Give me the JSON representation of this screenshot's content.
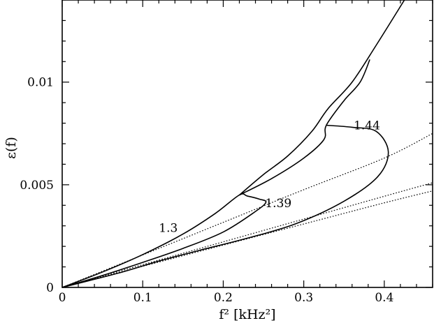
{
  "chart_data": {
    "type": "line",
    "xlabel": "f² [kHz²]",
    "ylabel": "ε(f)",
    "xlim": [
      0,
      0.46
    ],
    "ylim": [
      0,
      0.014
    ],
    "xticks": [
      {
        "value": 0,
        "label": "0"
      },
      {
        "value": 0.1,
        "label": "0.1"
      },
      {
        "value": 0.2,
        "label": "0.2"
      },
      {
        "value": 0.3,
        "label": "0.3"
      },
      {
        "value": 0.4,
        "label": "0.4"
      }
    ],
    "yticks": [
      {
        "value": 0,
        "label": "0"
      },
      {
        "value": 0.005,
        "label": "0.005"
      },
      {
        "value": 0.01,
        "label": "0.01"
      }
    ],
    "series": [
      {
        "style": "solid",
        "points": [
          [
            0,
            0
          ],
          [
            0.05,
            0.00075
          ],
          [
            0.1,
            0.0016
          ],
          [
            0.15,
            0.0026
          ],
          [
            0.19,
            0.0036
          ],
          [
            0.22,
            0.0045
          ],
          [
            0.23,
            0.00445
          ],
          [
            0.245,
            0.0043
          ],
          [
            0.253,
            0.00415
          ],
          [
            0.24,
            0.0037
          ],
          [
            0.2,
            0.0027
          ],
          [
            0.15,
            0.0019
          ],
          [
            0.1,
            0.00122
          ],
          [
            0.05,
            0.00058
          ],
          [
            0,
            0
          ]
        ]
      },
      {
        "style": "solid",
        "points": [
          [
            0.22,
            0.0045
          ],
          [
            0.25,
            0.0055
          ],
          [
            0.28,
            0.0064
          ],
          [
            0.31,
            0.0076
          ],
          [
            0.33,
            0.0087
          ],
          [
            0.36,
            0.01
          ],
          [
            0.39,
            0.0118
          ],
          [
            0.425,
            0.014
          ]
        ]
      },
      {
        "style": "solid",
        "points": [
          [
            0.22,
            0.0045
          ],
          [
            0.26,
            0.0053
          ],
          [
            0.3,
            0.0063
          ],
          [
            0.325,
            0.0072
          ],
          [
            0.328,
            0.0079
          ],
          [
            0.35,
            0.0091
          ],
          [
            0.37,
            0.01
          ],
          [
            0.382,
            0.0111
          ]
        ]
      },
      {
        "style": "solid",
        "points": [
          [
            0.328,
            0.0079
          ],
          [
            0.36,
            0.0078
          ],
          [
            0.39,
            0.0076
          ],
          [
            0.405,
            0.0066
          ],
          [
            0.392,
            0.0054
          ],
          [
            0.35,
            0.0042
          ],
          [
            0.29,
            0.0031
          ],
          [
            0.23,
            0.0024
          ],
          [
            0.17,
            0.0018
          ],
          [
            0.12,
            0.00128
          ],
          [
            0.07,
            0.0007
          ],
          [
            0,
            0
          ]
        ]
      },
      {
        "style": "dotted",
        "points": [
          [
            0,
            0
          ],
          [
            0.1,
            0.00158
          ],
          [
            0.2,
            0.00317
          ],
          [
            0.3,
            0.00476
          ],
          [
            0.4,
            0.0063
          ],
          [
            0.46,
            0.0075
          ]
        ]
      },
      {
        "style": "dotted",
        "points": [
          [
            0,
            0
          ],
          [
            0.1,
            0.00111
          ],
          [
            0.2,
            0.00222
          ],
          [
            0.3,
            0.00333
          ],
          [
            0.4,
            0.00444
          ],
          [
            0.46,
            0.0051
          ]
        ]
      },
      {
        "style": "dotted",
        "points": [
          [
            0,
            0
          ],
          [
            0.1,
            0.00103
          ],
          [
            0.2,
            0.00206
          ],
          [
            0.3,
            0.00309
          ],
          [
            0.4,
            0.00412
          ],
          [
            0.46,
            0.0047
          ]
        ]
      }
    ],
    "annotations": [
      {
        "text": "1.3",
        "x": 0.12,
        "y": 0.0027
      },
      {
        "text": "1.39",
        "x": 0.252,
        "y": 0.0039
      },
      {
        "text": "1.44",
        "x": 0.362,
        "y": 0.0077
      }
    ]
  }
}
